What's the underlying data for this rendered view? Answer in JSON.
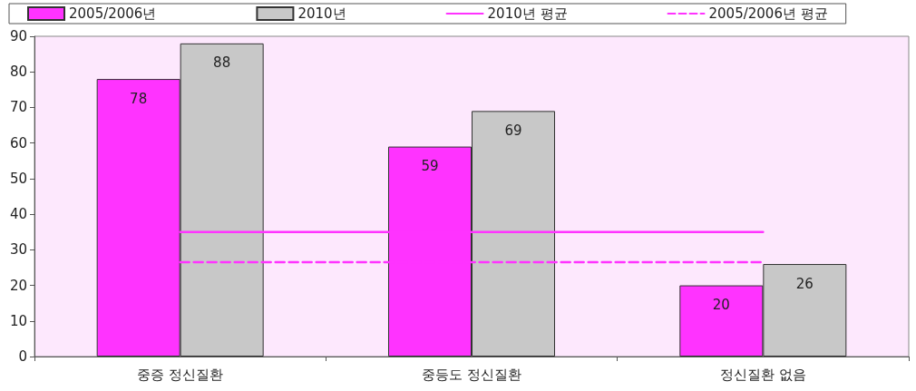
{
  "chart_data": {
    "type": "bar",
    "categories": [
      "중증 정신질환",
      "중등도 정신질환",
      "정신질환 없음"
    ],
    "series": [
      {
        "name": "2005/2006년",
        "color": "#ff33ff",
        "values": [
          78,
          59,
          20
        ],
        "value_labels": [
          "78",
          "59",
          "20"
        ]
      },
      {
        "name": "2010년",
        "color": "#c8c8c8",
        "values": [
          88,
          69,
          26
        ],
        "value_labels": [
          "88",
          "69",
          "26"
        ]
      },
      {
        "name": "2010년 평균",
        "type": "line",
        "color": "#ff33ff",
        "line_style": "solid",
        "values": [
          35,
          35,
          35
        ]
      },
      {
        "name": "2005/2006년 평균",
        "type": "line",
        "color": "#ff33ff",
        "line_style": "dashed",
        "values": [
          26.5,
          26.5,
          26.5
        ]
      }
    ],
    "ylim": [
      0,
      90
    ],
    "yticks": [
      0,
      10,
      20,
      30,
      40,
      50,
      60,
      70,
      80,
      90
    ],
    "grid": false,
    "legend": "top",
    "marker": "none"
  }
}
